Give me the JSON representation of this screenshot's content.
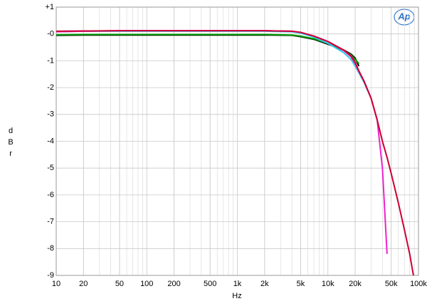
{
  "chart_data": {
    "type": "line",
    "logo": "Ap",
    "x_label": "Hz",
    "y_label": "dBr",
    "xscale": "log",
    "grid": true,
    "xlim": [
      10,
      100000
    ],
    "ylim": [
      -9,
      1
    ],
    "xticks": [
      10,
      20,
      50,
      100,
      200,
      500,
      {
        "value": 1000,
        "label": "1k"
      },
      {
        "value": 2000,
        "label": "2k"
      },
      {
        "value": 5000,
        "label": "5k"
      },
      {
        "value": 10000,
        "label": "10k"
      },
      {
        "value": 20000,
        "label": "20k"
      },
      {
        "value": 50000,
        "label": "50k"
      },
      {
        "value": 100000,
        "label": "100k"
      }
    ],
    "yticks": [
      {
        "value": 1,
        "label": "+1"
      },
      {
        "value": 0,
        "label": "-0"
      },
      -1,
      -2,
      -3,
      -4,
      -5,
      -6,
      -7,
      -8,
      -9
    ],
    "x": [
      10,
      20,
      50,
      100,
      200,
      500,
      1000,
      2000,
      4000,
      5000,
      7000,
      10000,
      15000,
      18000,
      20000,
      22000,
      25000,
      30000,
      35000,
      40000,
      45000,
      50000,
      60000,
      70000,
      80000,
      88000
    ],
    "series": [
      {
        "color": "#000000",
        "values": [
          -0.05,
          -0.04,
          -0.04,
          -0.04,
          -0.04,
          -0.04,
          -0.04,
          -0.04,
          -0.05,
          -0.1,
          -0.2,
          -0.38,
          -0.6,
          -0.75,
          -0.9,
          -1.2,
          null,
          null,
          null,
          null,
          null,
          null,
          null,
          null,
          null,
          null
        ]
      },
      {
        "color": "#00a000",
        "values": [
          -0.03,
          -0.02,
          -0.02,
          -0.02,
          -0.02,
          -0.02,
          -0.02,
          -0.02,
          -0.04,
          -0.08,
          -0.18,
          -0.35,
          -0.62,
          -0.78,
          -0.95,
          -1.1,
          null,
          null,
          null,
          null,
          null,
          null,
          null,
          null,
          null,
          null
        ]
      },
      {
        "color": "#33ccee",
        "values": [
          0.08,
          0.1,
          0.1,
          0.1,
          0.1,
          0.1,
          0.1,
          0.1,
          0.08,
          0.03,
          -0.12,
          -0.35,
          -0.7,
          -0.95,
          -1.2,
          -1.45,
          -1.8,
          -2.4,
          null,
          null,
          null,
          null,
          null,
          null,
          null,
          null
        ]
      },
      {
        "color": "#ee22cc",
        "values": [
          0.08,
          0.1,
          0.12,
          0.12,
          0.12,
          0.12,
          0.12,
          0.12,
          0.1,
          0.06,
          -0.08,
          -0.28,
          -0.62,
          -0.85,
          -1.1,
          -1.4,
          -1.75,
          -2.4,
          -3.2,
          -5.0,
          -8.2,
          null,
          null,
          null,
          null,
          null
        ]
      },
      {
        "color": "#cc0033",
        "values": [
          0.1,
          0.11,
          0.12,
          0.12,
          0.12,
          0.12,
          0.12,
          0.12,
          0.1,
          0.06,
          -0.08,
          -0.28,
          -0.6,
          -0.82,
          -1.05,
          -1.38,
          -1.75,
          -2.4,
          -3.2,
          -4.0,
          -4.6,
          -5.2,
          -6.3,
          -7.3,
          -8.2,
          -9.0
        ]
      }
    ]
  }
}
